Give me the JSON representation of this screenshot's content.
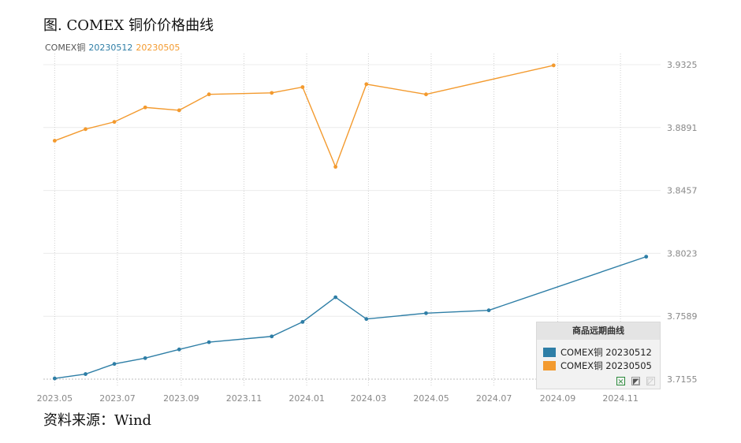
{
  "title": "图. COMEX 铜价价格曲线",
  "source": "资料来源：Wind",
  "legend_top": {
    "prefix": "COMEX铜",
    "series_a": "20230512",
    "series_b": "20230505"
  },
  "legend_box": {
    "title": "商品远期曲线",
    "items": [
      "COMEX铜 20230512",
      "COMEX铜 20230505"
    ],
    "tools": [
      "excel-icon",
      "copy-icon",
      "close-icon"
    ]
  },
  "colors": {
    "blue": "#2e7ea6",
    "orange": "#f39a2e",
    "grid": "#e6e6e6",
    "axis_text": "#888888"
  },
  "chart_data": {
    "type": "line",
    "x_ticks": [
      "2023.05",
      "2023.07",
      "2023.09",
      "2023.11",
      "2024.01",
      "2024.03",
      "2024.05",
      "2024.07",
      "2024.09",
      "2024.11"
    ],
    "y_ticks": [
      3.7155,
      3.7589,
      3.8023,
      3.8457,
      3.8891,
      3.9325
    ],
    "ylim": [
      3.7155,
      3.9325
    ],
    "xlim": [
      "2023-04-20",
      "2024-12-10"
    ],
    "series": [
      {
        "name": "COMEX铜 20230512",
        "color": "#2e7ea6",
        "points": [
          [
            "2023-05-01",
            3.716
          ],
          [
            "2023-05-31",
            3.719
          ],
          [
            "2023-06-28",
            3.726
          ],
          [
            "2023-07-28",
            3.73
          ],
          [
            "2023-08-30",
            3.736
          ],
          [
            "2023-09-28",
            3.741
          ],
          [
            "2023-11-28",
            3.745
          ],
          [
            "2023-12-28",
            3.755
          ],
          [
            "2024-01-29",
            3.772
          ],
          [
            "2024-02-28",
            3.757
          ],
          [
            "2024-04-26",
            3.761
          ],
          [
            "2024-06-26",
            3.763
          ],
          [
            "2024-11-26",
            3.8
          ]
        ]
      },
      {
        "name": "COMEX铜 20230505",
        "color": "#f39a2e",
        "points": [
          [
            "2023-05-01",
            3.88
          ],
          [
            "2023-05-31",
            3.888
          ],
          [
            "2023-06-28",
            3.893
          ],
          [
            "2023-07-28",
            3.903
          ],
          [
            "2023-08-30",
            3.901
          ],
          [
            "2023-09-28",
            3.912
          ],
          [
            "2023-11-28",
            3.913
          ],
          [
            "2023-12-28",
            3.917
          ],
          [
            "2024-01-29",
            3.862
          ],
          [
            "2024-02-28",
            3.919
          ],
          [
            "2024-04-26",
            3.912
          ],
          [
            "2024-08-28",
            3.932
          ]
        ]
      }
    ]
  }
}
